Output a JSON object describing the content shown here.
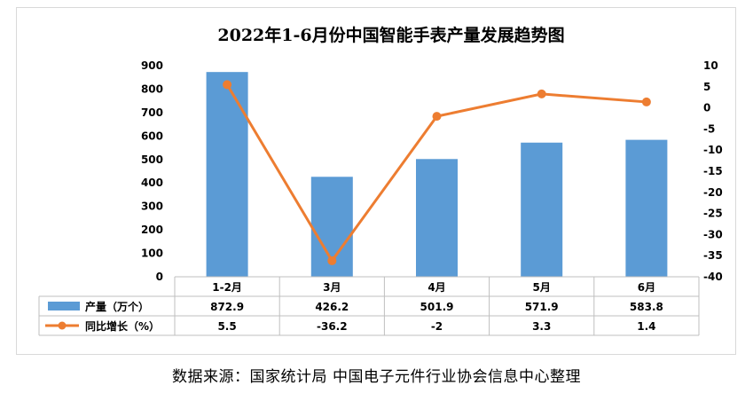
{
  "chart_data": {
    "type": "bar",
    "title": "2022年1-6月份中国智能手表产量发展趋势图",
    "categories": [
      "1-2月",
      "3月",
      "4月",
      "5月",
      "6月"
    ],
    "series": [
      {
        "name": "产量（万个）",
        "type": "bar",
        "axis": "left",
        "color": "#5b9bd5",
        "values": [
          872.9,
          426.2,
          501.9,
          571.9,
          583.8
        ]
      },
      {
        "name": "同比增长（%）",
        "type": "line",
        "axis": "right",
        "color": "#ed7d31",
        "values": [
          5.5,
          -36.2,
          -2,
          3.3,
          1.4
        ]
      }
    ],
    "y_left": {
      "min": 0,
      "max": 900,
      "step": 100
    },
    "y_right": {
      "min": -40,
      "max": 10,
      "step": 5
    },
    "grid": false,
    "legend": "data-table-below"
  },
  "source_text": "数据来源：国家统计局    中国电子元件行业协会信息中心整理"
}
